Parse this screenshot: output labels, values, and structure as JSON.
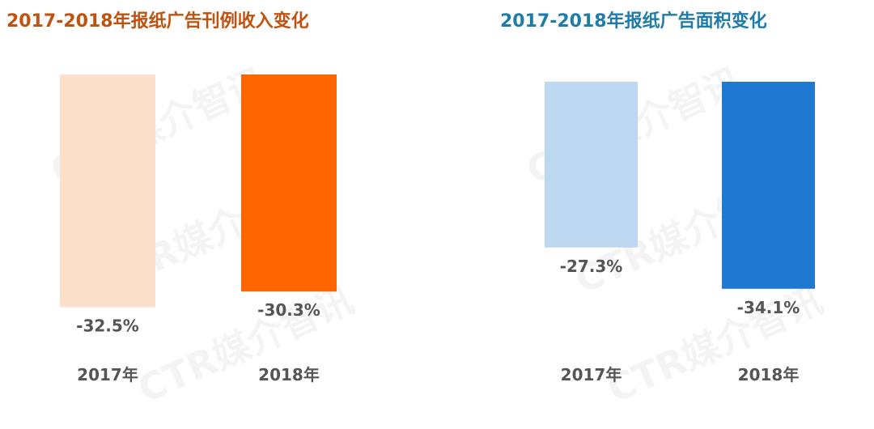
{
  "watermark": "CTR媒介智讯",
  "chart_data": [
    {
      "type": "bar",
      "title": "2017-2018年报纸广告刊例收入变化",
      "title_color": "#C0520F",
      "categories": [
        "2017年",
        "2018年"
      ],
      "values": [
        -32.5,
        -30.3
      ],
      "data_labels": [
        "-32.5%",
        "-30.3%"
      ],
      "bar_colors": [
        "#FCE0CC",
        "#FF6600"
      ],
      "ylim": [
        -40,
        0
      ],
      "grid": false,
      "legend": "none"
    },
    {
      "type": "bar",
      "title": "2017-2018年报纸广告面积变化",
      "title_color": "#1F7CA8",
      "categories": [
        "2017年",
        "2018年"
      ],
      "values": [
        -27.3,
        -34.1
      ],
      "data_labels": [
        "-27.3%",
        "-34.1%"
      ],
      "bar_colors": [
        "#BDD7F0",
        "#1F78D1"
      ],
      "ylim": [
        -40,
        0
      ],
      "grid": false,
      "legend": "none"
    }
  ]
}
